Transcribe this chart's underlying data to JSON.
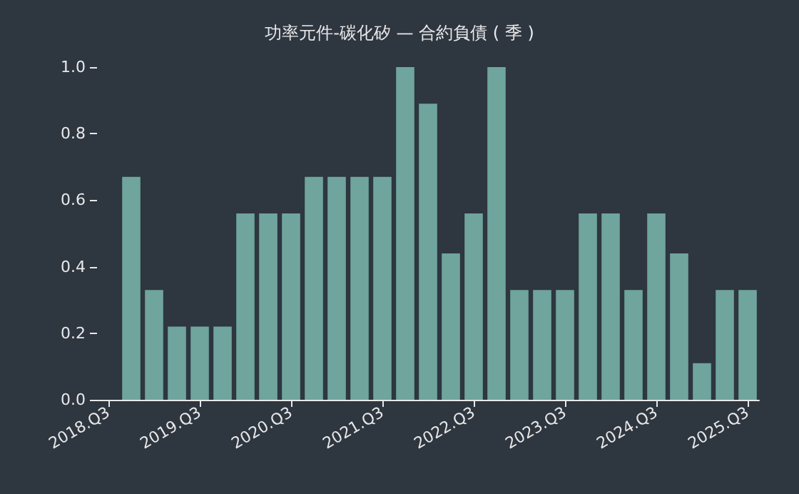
{
  "chart_data": {
    "type": "bar",
    "title": "功率元件-碳化矽 — 合約負債 ( 季 )",
    "categories": [
      "2018.Q3",
      null,
      null,
      null,
      "2019.Q3",
      null,
      null,
      null,
      "2020.Q3",
      null,
      null,
      null,
      "2021.Q3",
      null,
      null,
      null,
      "2022.Q3",
      null,
      null,
      null,
      "2023.Q3",
      null,
      null,
      null,
      "2024.Q3",
      null,
      null,
      null,
      "2025.Q3"
    ],
    "values": [
      null,
      0.67,
      0.33,
      0.22,
      0.22,
      0.22,
      0.56,
      0.56,
      0.56,
      0.67,
      0.67,
      0.67,
      0.67,
      1.0,
      0.89,
      0.44,
      0.56,
      1.0,
      0.33,
      0.33,
      0.33,
      0.56,
      0.56,
      0.33,
      0.56,
      0.44,
      0.11,
      0.33,
      0.33
    ],
    "color": "#6fa59c",
    "ylim": [
      0,
      1
    ],
    "yticks": [
      {
        "value": 0,
        "label": "0.0"
      },
      {
        "value": 0.2,
        "label": "0.2"
      },
      {
        "value": 0.4,
        "label": "0.4"
      },
      {
        "value": 0.6,
        "label": "0.6"
      },
      {
        "value": 0.8,
        "label": "0.8"
      },
      {
        "value": 1,
        "label": "1.0"
      }
    ],
    "grid": false
  }
}
